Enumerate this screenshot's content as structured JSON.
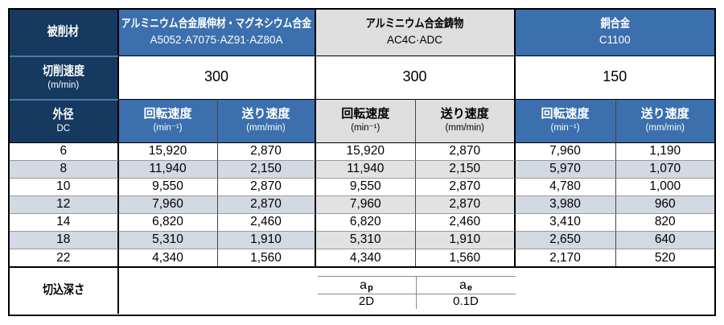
{
  "table": {
    "corner": {
      "work_material": "被削材",
      "cutting_speed": "切削速度",
      "cutting_speed_unit": "(m/min)",
      "outer_diameter": "外径",
      "outer_diameter_sub": "DC",
      "depth_of_cut": "切込深さ"
    },
    "materials": [
      {
        "name": "アルミニウム合金展伸材・マグネシウム合金",
        "grades": "A5052·A7075·AZ91·AZ80A",
        "cutting_speed": "300"
      },
      {
        "name": "アルミニウム合金鋳物",
        "grades": "AC4C·ADC",
        "cutting_speed": "300"
      },
      {
        "name": "銅合金",
        "grades": "C1100",
        "cutting_speed": "150"
      }
    ],
    "column_headers": {
      "rotation_speed": "回転速度",
      "rotation_speed_unit": "(min⁻¹)",
      "feed_rate": "送り速度",
      "feed_rate_unit": "(mm/min)"
    },
    "rows": [
      {
        "dc": "6",
        "values": [
          "15,920",
          "2,870",
          "15,920",
          "2,870",
          "7,960",
          "1,190"
        ]
      },
      {
        "dc": "8",
        "values": [
          "11,940",
          "2,150",
          "11,940",
          "2,150",
          "5,970",
          "1,070"
        ]
      },
      {
        "dc": "10",
        "values": [
          "9,550",
          "2,870",
          "9,550",
          "2,870",
          "4,780",
          "1,000"
        ]
      },
      {
        "dc": "12",
        "values": [
          "7,960",
          "2,870",
          "7,960",
          "2,870",
          "3,980",
          "960"
        ]
      },
      {
        "dc": "14",
        "values": [
          "6,820",
          "2,460",
          "6,820",
          "2,460",
          "3,410",
          "820"
        ]
      },
      {
        "dc": "18",
        "values": [
          "5,310",
          "1,910",
          "5,310",
          "1,910",
          "2,650",
          "640"
        ]
      },
      {
        "dc": "22",
        "values": [
          "4,340",
          "1,560",
          "4,340",
          "1,560",
          "2,170",
          "520"
        ]
      }
    ],
    "depth": {
      "ap_base": "a",
      "ap_sub": "p",
      "ap_value": "2D",
      "ae_base": "a",
      "ae_sub": "e",
      "ae_value": "0.1D"
    },
    "colors": {
      "navy": "#16395f",
      "blue": "#3b6fad",
      "header_gray": "#dedede",
      "alt_row_blue": "#d3d9e3",
      "alt_row_gray": "#e2e2e2"
    }
  }
}
